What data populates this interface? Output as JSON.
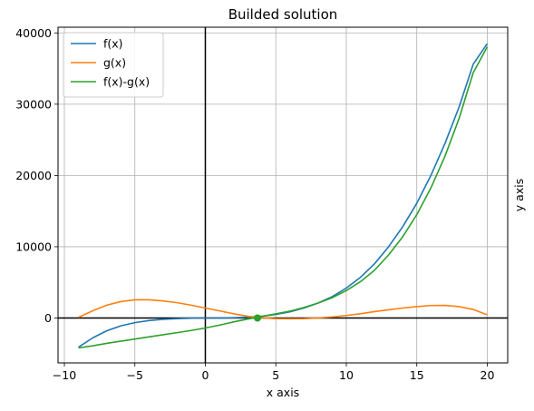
{
  "chart_data": {
    "type": "line",
    "title": "Builded solution",
    "xlabel": "x axis",
    "ylabel": "y axis",
    "xlim": [
      -10.45,
      21.45
    ],
    "ylim": [
      -6300,
      40800
    ],
    "xticks": [
      -10,
      -5,
      0,
      5,
      10,
      15,
      20
    ],
    "yticks": [
      0,
      10000,
      20000,
      30000,
      40000
    ],
    "grid": true,
    "legend": "top-left",
    "axes_lines": {
      "x_zero": true,
      "y_zero": true,
      "color": "#000000"
    },
    "series": [
      {
        "name": "f(x)",
        "color": "#1f77b4",
        "x": [
          -9,
          -8,
          -7,
          -6,
          -5,
          -4,
          -3,
          -2,
          -1,
          0,
          1,
          2,
          3,
          4,
          5,
          6,
          7,
          8,
          9,
          10,
          11,
          12,
          13,
          14,
          15,
          16,
          17,
          18,
          19,
          20
        ],
        "y": [
          -4100,
          -2800,
          -1800,
          -1100,
          -650,
          -360,
          -180,
          -80,
          -30,
          0,
          10,
          40,
          100,
          250,
          500,
          860,
          1400,
          2100,
          3000,
          4200,
          5700,
          7600,
          10000,
          12800,
          16100,
          20000,
          24500,
          29600,
          35600,
          38500
        ]
      },
      {
        "name": "g(x)",
        "color": "#ff7f0e",
        "x": [
          -9,
          -8,
          -7,
          -6,
          -5,
          -4,
          -3,
          -2,
          -1,
          0,
          1,
          2,
          3,
          4,
          5,
          6,
          7,
          8,
          9,
          10,
          11,
          12,
          13,
          14,
          15,
          16,
          17,
          18,
          19,
          20
        ],
        "y": [
          100,
          1000,
          1800,
          2300,
          2550,
          2560,
          2400,
          2150,
          1800,
          1400,
          1000,
          600,
          250,
          20,
          -80,
          -100,
          -80,
          0,
          150,
          350,
          600,
          900,
          1150,
          1400,
          1600,
          1750,
          1780,
          1600,
          1200,
          450
        ]
      },
      {
        "name": "f(x)-g(x)",
        "color": "#2ca02c",
        "x": [
          -9,
          -8,
          -7,
          -6,
          -5,
          -4,
          -3,
          -2,
          -1,
          0,
          1,
          2,
          3,
          4,
          5,
          6,
          7,
          8,
          9,
          10,
          11,
          12,
          13,
          14,
          15,
          16,
          17,
          18,
          19,
          20
        ],
        "y": [
          -4200,
          -3900,
          -3550,
          -3250,
          -2950,
          -2650,
          -2350,
          -2050,
          -1750,
          -1400,
          -1000,
          -550,
          -150,
          230,
          580,
          960,
          1480,
          2100,
          2850,
          3850,
          5100,
          6700,
          8850,
          11400,
          14500,
          18250,
          22700,
          28000,
          34400,
          38050
        ]
      }
    ],
    "markers": [
      {
        "series": "f(x)-g(x)",
        "x": 3.7,
        "y": 0,
        "color": "#2ca02c"
      }
    ]
  }
}
